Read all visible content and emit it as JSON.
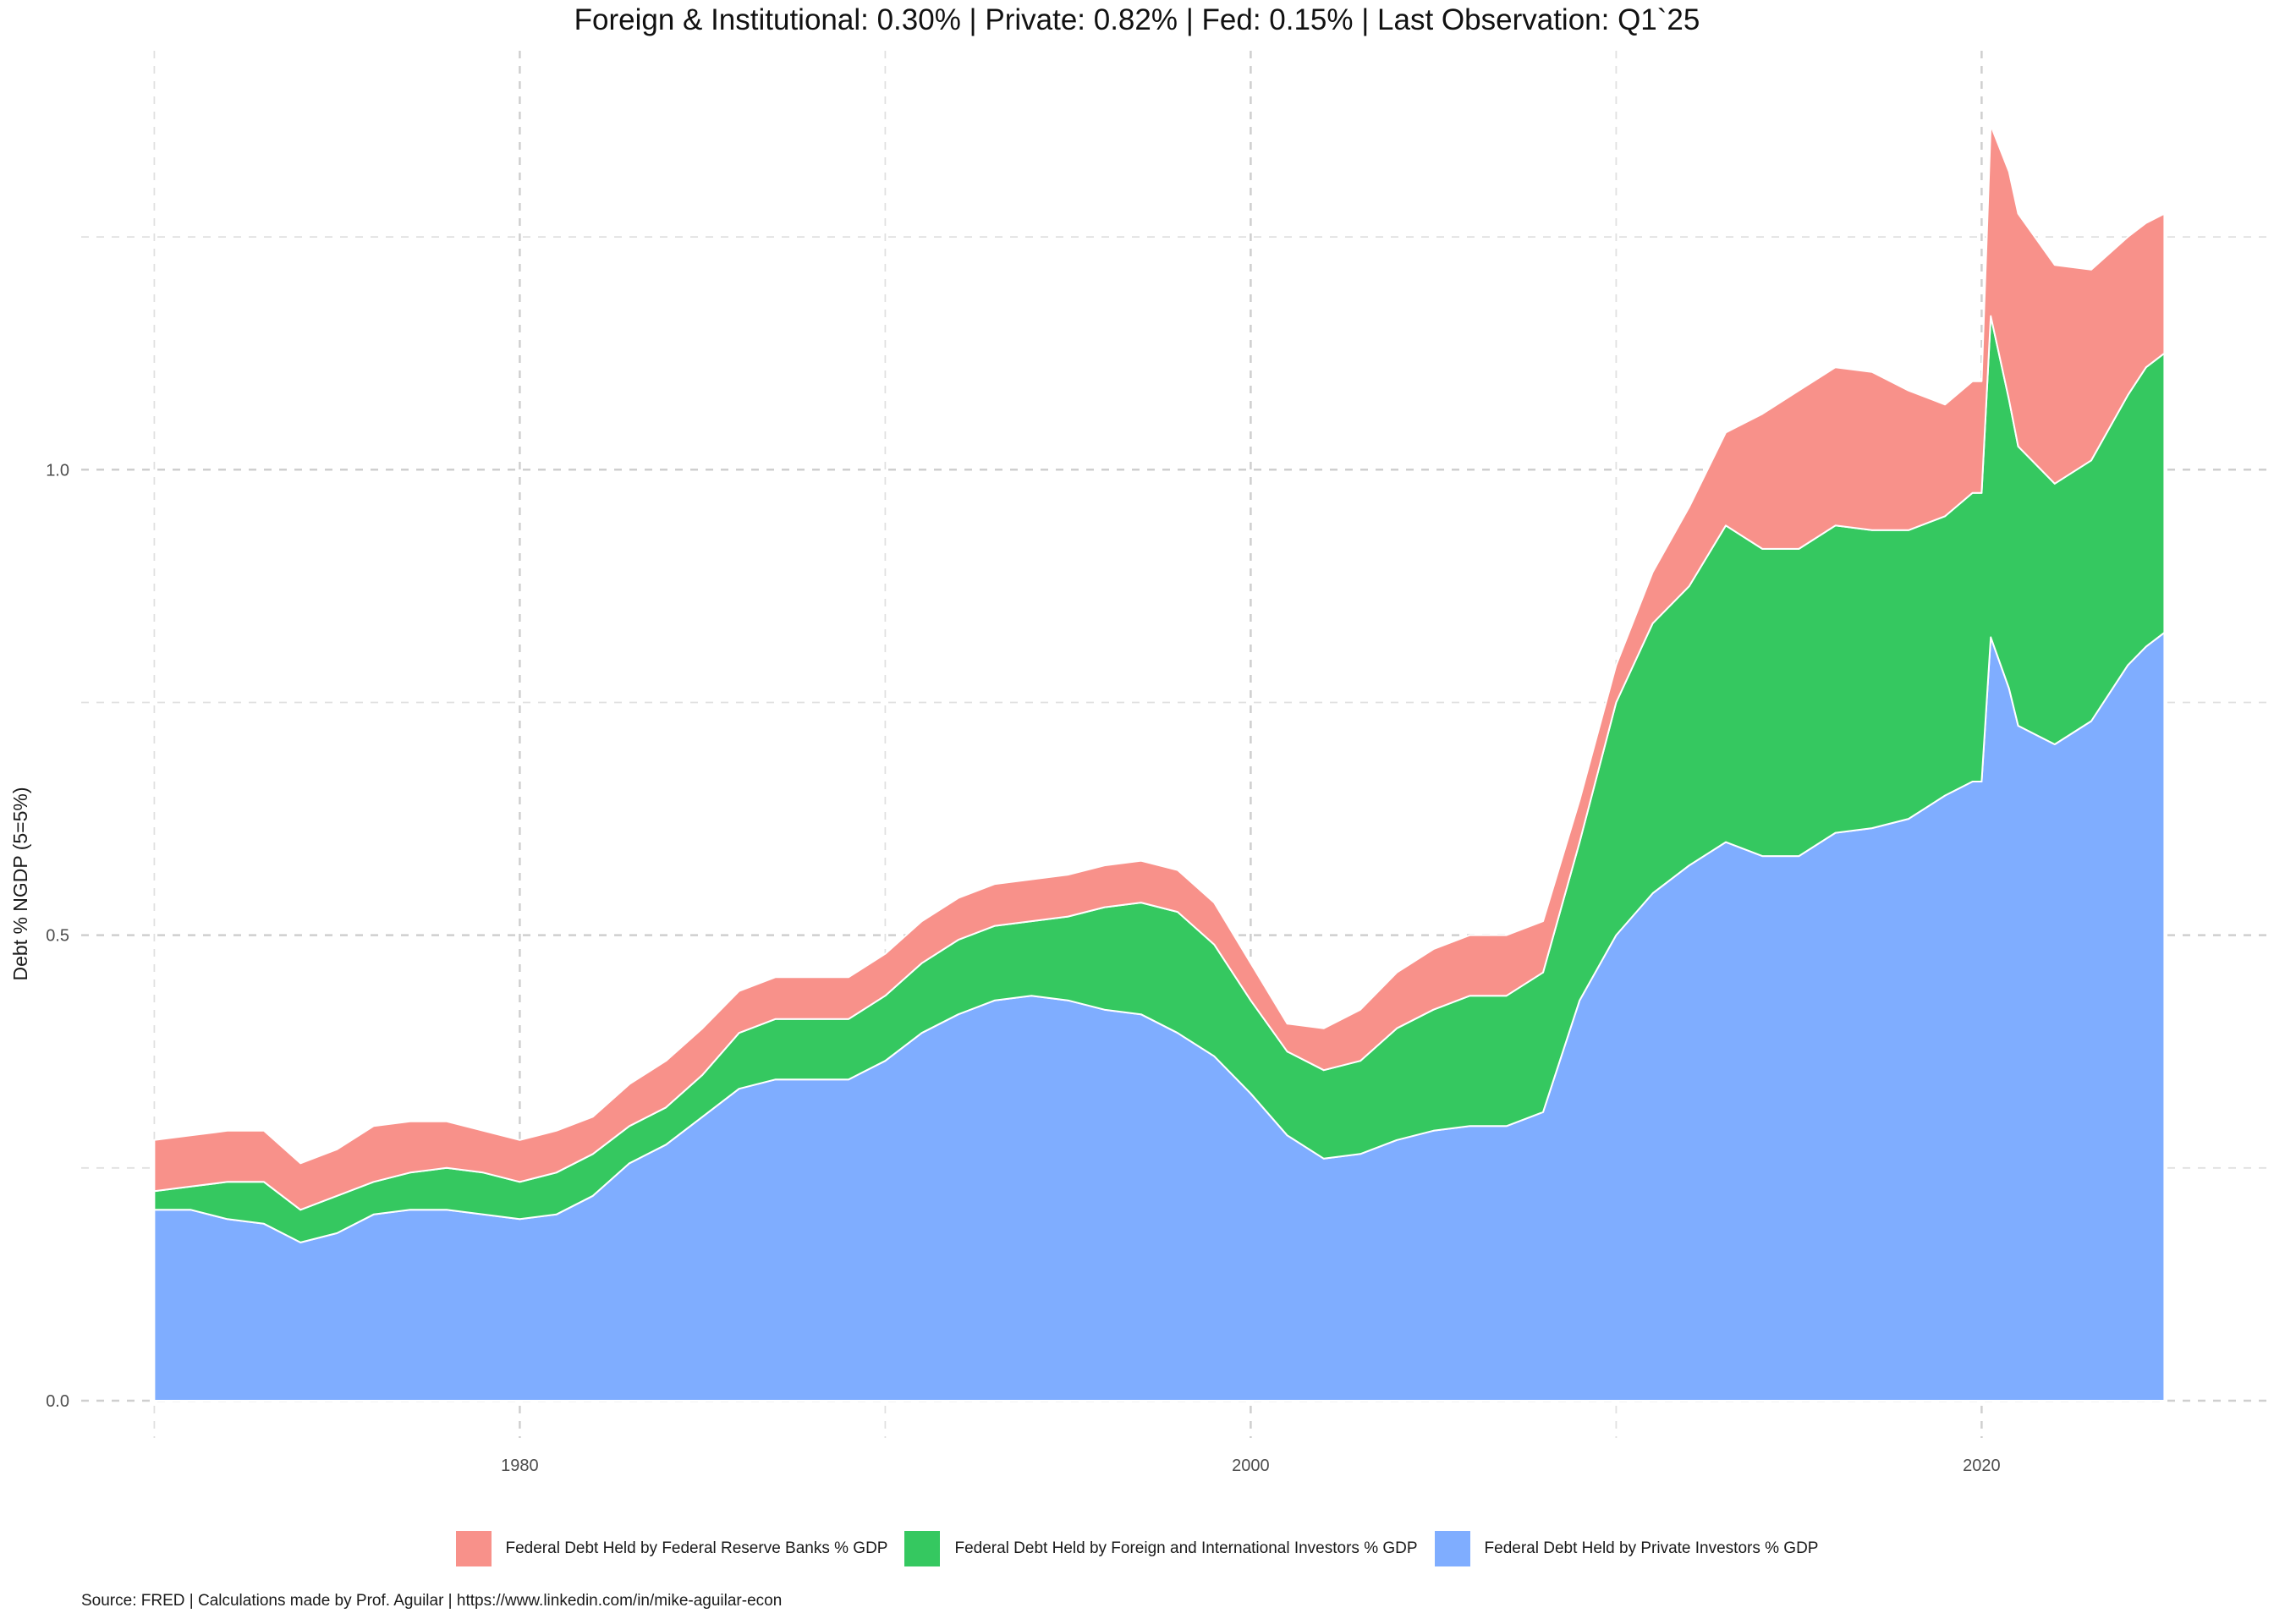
{
  "chart_data": {
    "type": "area",
    "stacked": true,
    "title": "Foreign & Institutional: 0.30% | Private: 0.82% | Fed: 0.15% | Last Observation: Q1`25",
    "xlabel": "",
    "ylabel": "Debt % NGDP (5=5%)",
    "caption": "Source: FRED | Calculations made by Prof. Aguilar | https://www.linkedin.com/in/mike-aguilar-econ",
    "xlim": [
      1968,
      2028
    ],
    "ylim": [
      -0.04,
      1.45
    ],
    "x_ticks": [
      1980,
      2000,
      2020
    ],
    "x_tick_labels": [
      "1980",
      "2000",
      "2020"
    ],
    "y_ticks": [
      0,
      0.5,
      1.0
    ],
    "y_tick_labels": [
      "0.0",
      "0.5",
      "1.0"
    ],
    "grid": true,
    "legend_position": "bottom",
    "x": [
      1970,
      1971,
      1972,
      1973,
      1974,
      1975,
      1976,
      1977,
      1978,
      1979,
      1980,
      1981,
      1982,
      1983,
      1984,
      1985,
      1986,
      1987,
      1988,
      1989,
      1990,
      1991,
      1992,
      1993,
      1994,
      1995,
      1996,
      1997,
      1998,
      1999,
      2000,
      2001,
      2002,
      2003,
      2004,
      2005,
      2006,
      2007,
      2008,
      2009,
      2010,
      2011,
      2012,
      2013,
      2014,
      2015,
      2016,
      2017,
      2018,
      2019,
      2019.75,
      2020.0,
      2020.25,
      2020.75,
      2021,
      2022,
      2023,
      2024,
      2024.5,
      2025.0
    ],
    "series": [
      {
        "name": "Federal Debt Held by Private Investors % GDP",
        "color": "#7fadff",
        "values": [
          0.205,
          0.205,
          0.195,
          0.19,
          0.17,
          0.18,
          0.2,
          0.205,
          0.205,
          0.2,
          0.195,
          0.2,
          0.22,
          0.255,
          0.275,
          0.305,
          0.335,
          0.345,
          0.345,
          0.345,
          0.365,
          0.395,
          0.415,
          0.43,
          0.435,
          0.43,
          0.42,
          0.415,
          0.395,
          0.37,
          0.33,
          0.285,
          0.26,
          0.265,
          0.28,
          0.29,
          0.295,
          0.295,
          0.31,
          0.43,
          0.5,
          0.545,
          0.575,
          0.6,
          0.585,
          0.585,
          0.61,
          0.615,
          0.625,
          0.65,
          0.665,
          0.665,
          0.82,
          0.765,
          0.725,
          0.705,
          0.73,
          0.79,
          0.81,
          0.825
        ]
      },
      {
        "name": "Federal Debt Held by Foreign and International Investors % GDP",
        "color": "#35c860",
        "values": [
          0.02,
          0.025,
          0.04,
          0.045,
          0.035,
          0.04,
          0.035,
          0.04,
          0.045,
          0.045,
          0.04,
          0.045,
          0.045,
          0.04,
          0.04,
          0.045,
          0.06,
          0.065,
          0.065,
          0.065,
          0.07,
          0.075,
          0.08,
          0.08,
          0.08,
          0.09,
          0.11,
          0.12,
          0.13,
          0.12,
          0.1,
          0.09,
          0.095,
          0.1,
          0.12,
          0.13,
          0.14,
          0.14,
          0.15,
          0.17,
          0.25,
          0.29,
          0.3,
          0.34,
          0.33,
          0.33,
          0.33,
          0.32,
          0.31,
          0.3,
          0.31,
          0.31,
          0.345,
          0.31,
          0.3,
          0.28,
          0.28,
          0.29,
          0.3,
          0.3
        ]
      },
      {
        "name": "Federal Debt Held by Federal Reserve Banks % GDP",
        "color": "#f8918a",
        "values": [
          0.055,
          0.055,
          0.055,
          0.055,
          0.05,
          0.05,
          0.06,
          0.055,
          0.05,
          0.045,
          0.045,
          0.045,
          0.04,
          0.045,
          0.05,
          0.05,
          0.045,
          0.045,
          0.045,
          0.045,
          0.045,
          0.045,
          0.045,
          0.045,
          0.045,
          0.045,
          0.045,
          0.045,
          0.045,
          0.045,
          0.04,
          0.03,
          0.045,
          0.055,
          0.06,
          0.065,
          0.065,
          0.065,
          0.055,
          0.045,
          0.04,
          0.055,
          0.085,
          0.1,
          0.145,
          0.17,
          0.17,
          0.17,
          0.15,
          0.12,
          0.12,
          0.12,
          0.205,
          0.245,
          0.25,
          0.235,
          0.205,
          0.17,
          0.155,
          0.15
        ]
      }
    ]
  }
}
